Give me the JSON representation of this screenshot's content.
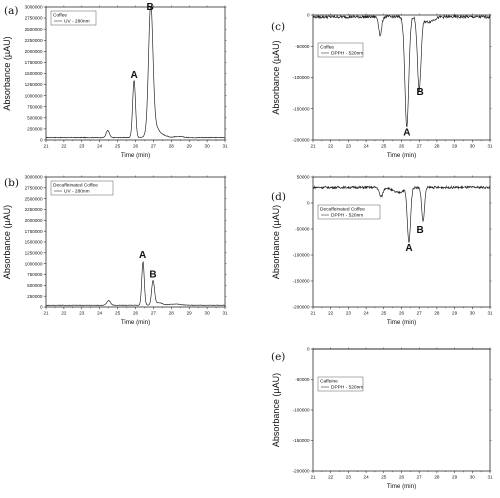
{
  "chart_data": [
    {
      "type": "line",
      "panel_label": "(a)",
      "xlabel": "Time (min)",
      "ylabel": "Absorbance (µAU)",
      "xlim": [
        21,
        31
      ],
      "ylim": [
        0,
        3000000
      ],
      "xticks": [
        21,
        22,
        23,
        24,
        25,
        26,
        27,
        28,
        29,
        30,
        31
      ],
      "yticks": [
        0,
        250000,
        500000,
        750000,
        1000000,
        1250000,
        1500000,
        1750000,
        2000000,
        2250000,
        2500000,
        2750000,
        3000000
      ],
      "ytick_labels": [
        "0",
        "250000",
        "500000",
        "750000",
        "1000000",
        "1250000",
        "1500000",
        "1750000",
        "2000000",
        "2250000",
        "2500000",
        "2750000",
        "3000000"
      ],
      "legend": {
        "title": "Coffee",
        "entry": "UV - 280nm",
        "placement": "top-left"
      },
      "baseline": 55000,
      "noise": 8000,
      "series": [
        {
          "x": [
            21,
            31
          ],
          "peaks": [
            {
              "x": 24.45,
              "h": 160000,
              "w": 0.09
            },
            {
              "x": 25.92,
              "h": 1290000,
              "w": 0.08
            },
            {
              "x": 26.85,
              "h": 2800000,
              "w": 0.12
            },
            {
              "x": 27.02,
              "h": 300000,
              "w": 0.25
            },
            {
              "x": 27.6,
              "h": 40000,
              "w": 0.2
            },
            {
              "x": 28.4,
              "h": 25000,
              "w": 0.25
            }
          ]
        }
      ],
      "annotations": [
        {
          "text": "A",
          "x": 25.92,
          "y": 1400000
        },
        {
          "text": "B",
          "x": 26.82,
          "y": 2930000
        }
      ]
    },
    {
      "type": "line",
      "panel_label": "(b)",
      "xlabel": "Time (min)",
      "ylabel": "Absorbance (µAU)",
      "xlim": [
        21,
        31
      ],
      "ylim": [
        0,
        3000000
      ],
      "xticks": [
        21,
        22,
        23,
        24,
        25,
        26,
        27,
        28,
        29,
        30,
        31
      ],
      "yticks": [
        0,
        250000,
        500000,
        750000,
        1000000,
        1250000,
        1500000,
        1750000,
        2000000,
        2250000,
        2500000,
        2750000,
        3000000
      ],
      "ytick_labels": [
        "0",
        "250000",
        "500000",
        "750000",
        "1000000",
        "1250000",
        "1500000",
        "1750000",
        "2000000",
        "2250000",
        "2500000",
        "2750000",
        "3000000"
      ],
      "legend": {
        "title": "Decaffeinated Coffee",
        "entry": "UV - 280nm",
        "placement": "top-left"
      },
      "baseline": 40000,
      "noise": 6000,
      "series": [
        {
          "x": [
            21,
            31
          ],
          "peaks": [
            {
              "x": 24.5,
              "h": 110000,
              "w": 0.1
            },
            {
              "x": 26.42,
              "h": 1000000,
              "w": 0.07
            },
            {
              "x": 26.98,
              "h": 560000,
              "w": 0.08
            },
            {
              "x": 27.3,
              "h": 60000,
              "w": 0.2
            },
            {
              "x": 28.2,
              "h": 30000,
              "w": 0.3
            }
          ]
        }
      ],
      "annotations": [
        {
          "text": "A",
          "x": 26.4,
          "y": 1130000
        },
        {
          "text": "B",
          "x": 26.98,
          "y": 680000
        }
      ]
    },
    {
      "type": "line",
      "panel_label": "(c)",
      "xlabel": "Time (min)",
      "ylabel": "Absorbance (µAU)",
      "xlim": [
        21,
        31
      ],
      "ylim": [
        -200000,
        0
      ],
      "xticks": [
        21,
        22,
        23,
        24,
        25,
        26,
        27,
        28,
        29,
        30,
        31
      ],
      "yticks": [
        -200000,
        -150000,
        -100000,
        -50000,
        0
      ],
      "ytick_labels": [
        "-200000",
        "-150000",
        "-100000",
        "-50000",
        "0"
      ],
      "legend": {
        "title": "Coffee",
        "entry": "DPPH - 520nm",
        "placement": "top-left"
      },
      "baseline": -3000,
      "noise": 2200,
      "series": [
        {
          "x": [
            21,
            31
          ],
          "peaks": [
            {
              "x": 24.8,
              "h": -30000,
              "w": 0.08
            },
            {
              "x": 26.3,
              "h": -175000,
              "w": 0.11
            },
            {
              "x": 27.0,
              "h": -115000,
              "w": 0.1
            },
            {
              "x": 27.5,
              "h": -8000,
              "w": 0.3
            }
          ]
        }
      ],
      "annotations": [
        {
          "text": "A",
          "x": 26.3,
          "y": -193000
        },
        {
          "text": "B",
          "x": 27.05,
          "y": -128000
        }
      ]
    },
    {
      "type": "line",
      "panel_label": "(d)",
      "xlabel": "Time (min)",
      "ylabel": "Absorbance (µAU)",
      "xlim": [
        21,
        31
      ],
      "ylim": [
        -200000,
        50000
      ],
      "xticks": [
        21,
        22,
        23,
        24,
        25,
        26,
        27,
        28,
        29,
        30,
        31
      ],
      "yticks": [
        -200000,
        -150000,
        -100000,
        -50000,
        0,
        50000
      ],
      "ytick_labels": [
        "-200000",
        "-150000",
        "-100000",
        "-50000",
        "0",
        "50000"
      ],
      "legend": {
        "title": "Decaffeinated Coffee",
        "entry": "DPPH - 520nm",
        "placement": "top-left"
      },
      "baseline": 30000,
      "noise": 2200,
      "series": [
        {
          "x": [
            21,
            31
          ],
          "peaks": [
            {
              "x": 24.85,
              "h": -18000,
              "w": 0.1
            },
            {
              "x": 26.42,
              "h": -105000,
              "w": 0.09
            },
            {
              "x": 27.22,
              "h": -65000,
              "w": 0.08
            },
            {
              "x": 25.8,
              "h": -10000,
              "w": 0.3
            }
          ]
        }
      ],
      "annotations": [
        {
          "text": "A",
          "x": 26.42,
          "y": -92000
        },
        {
          "text": "B",
          "x": 27.05,
          "y": -58000
        }
      ]
    },
    {
      "type": "line",
      "panel_label": "(e)",
      "xlabel": "Time (min)",
      "ylabel": "Absorbance (µAU)",
      "xlim": [
        21,
        31
      ],
      "ylim": [
        -200000,
        0
      ],
      "xticks": [
        21,
        22,
        23,
        24,
        25,
        26,
        27,
        28,
        29,
        30,
        31
      ],
      "yticks": [
        -200000,
        -150000,
        -100000,
        -50000,
        0
      ],
      "ytick_labels": [
        "-200000",
        "-150000",
        "-100000",
        "-50000",
        "0"
      ],
      "legend": {
        "title": "Caffeine",
        "entry": "DPPH - 520nm",
        "placement": "top-left"
      },
      "baseline": 5500,
      "noise": 2200,
      "series": [
        {
          "x": [
            21,
            31
          ],
          "peaks": []
        }
      ],
      "annotations": []
    }
  ]
}
